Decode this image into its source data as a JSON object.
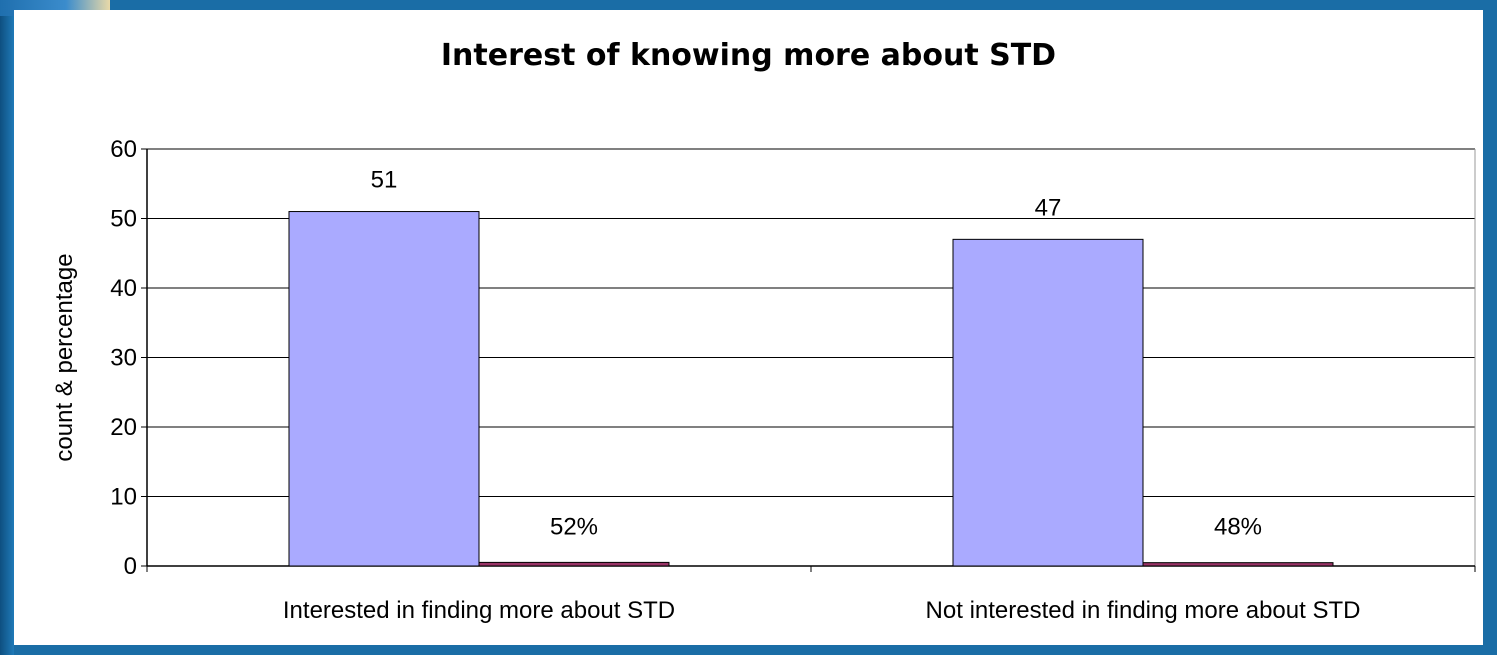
{
  "chart_data": {
    "type": "bar",
    "title": "Interest of knowing more about STD",
    "xlabel": "",
    "ylabel": "count & percentage",
    "ylim": [
      0,
      60
    ],
    "yticks": [
      0,
      10,
      20,
      30,
      40,
      50,
      60
    ],
    "grid": true,
    "categories": [
      "Interested in finding more about STD",
      "Not interested in finding more about STD"
    ],
    "series": [
      {
        "values": [
          51,
          47
        ],
        "labels": [
          "51",
          "47"
        ],
        "color": "#aaaaff"
      },
      {
        "values": [
          0.52,
          0.48
        ],
        "labels": [
          "52%",
          "48%"
        ],
        "color": "#993366"
      }
    ]
  }
}
